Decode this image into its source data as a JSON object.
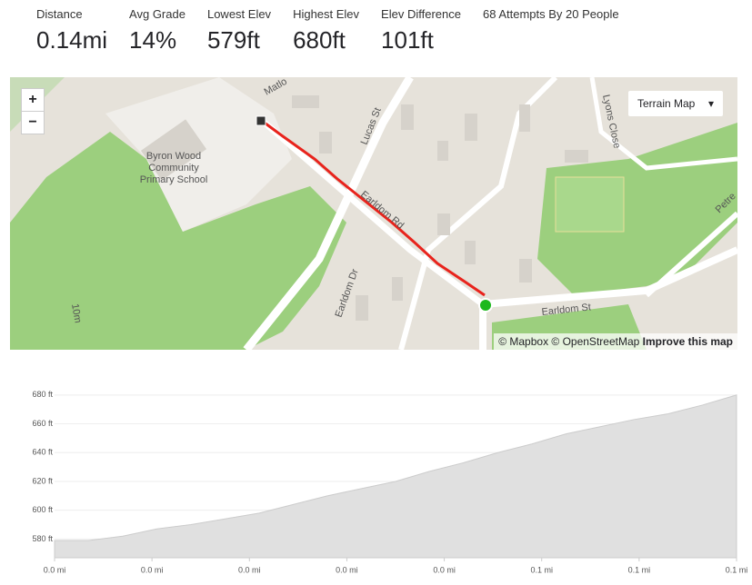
{
  "stats": [
    {
      "label": "Distance",
      "value": "0.14mi"
    },
    {
      "label": "Avg Grade",
      "value": "14%"
    },
    {
      "label": "Lowest Elev",
      "value": "579ft"
    },
    {
      "label": "Highest Elev",
      "value": "680ft"
    },
    {
      "label": "Elev Difference",
      "value": "101ft"
    },
    {
      "label": "68 Attempts By 20 People"
    }
  ],
  "map": {
    "zoom_in": "+",
    "zoom_out": "−",
    "layer_button": "Terrain Map",
    "labels": [
      "Byron Wood",
      "Community",
      "Primary School",
      "Earldom Rd",
      "Lucas St",
      "Earldom Dr",
      "Earldom St",
      "Lyons Close",
      "Matlo",
      "Petre",
      "10m"
    ],
    "attribution": "© Mapbox © OpenStreetMap",
    "improve": "Improve this map"
  },
  "chart_data": {
    "type": "area",
    "color": "#e0e0e0",
    "x": [
      0,
      0.007,
      0.014,
      0.021,
      0.028,
      0.035,
      0.042,
      0.049,
      0.056,
      0.063,
      0.07,
      0.077,
      0.084,
      0.091,
      0.098,
      0.105,
      0.112,
      0.119,
      0.126,
      0.133,
      0.14
    ],
    "values": [
      579,
      579,
      582,
      587,
      590,
      594,
      598,
      604,
      610,
      615,
      620,
      627,
      633,
      640,
      646,
      653,
      658,
      663,
      667,
      673,
      680
    ],
    "xlim": [
      0,
      0.14
    ],
    "xticks": [
      {
        "value": 0,
        "label": "0.0 mi"
      },
      {
        "value": 0.02,
        "label": "0.0 mi"
      },
      {
        "value": 0.04,
        "label": "0.0 mi"
      },
      {
        "value": 0.06,
        "label": "0.0 mi"
      },
      {
        "value": 0.08,
        "label": "0.0 mi"
      },
      {
        "value": 0.1,
        "label": "0.1 mi"
      },
      {
        "value": 0.12,
        "label": "0.1 mi"
      },
      {
        "value": 0.14,
        "label": "0.1 mi"
      }
    ],
    "ylim": [
      567,
      690
    ],
    "yticks": [
      {
        "value": 580,
        "label": "580 ft"
      },
      {
        "value": 600,
        "label": "600 ft"
      },
      {
        "value": 620,
        "label": "620 ft"
      },
      {
        "value": 640,
        "label": "640 ft"
      },
      {
        "value": 660,
        "label": "660 ft"
      },
      {
        "value": 680,
        "label": "680 ft"
      }
    ],
    "grid": true
  }
}
